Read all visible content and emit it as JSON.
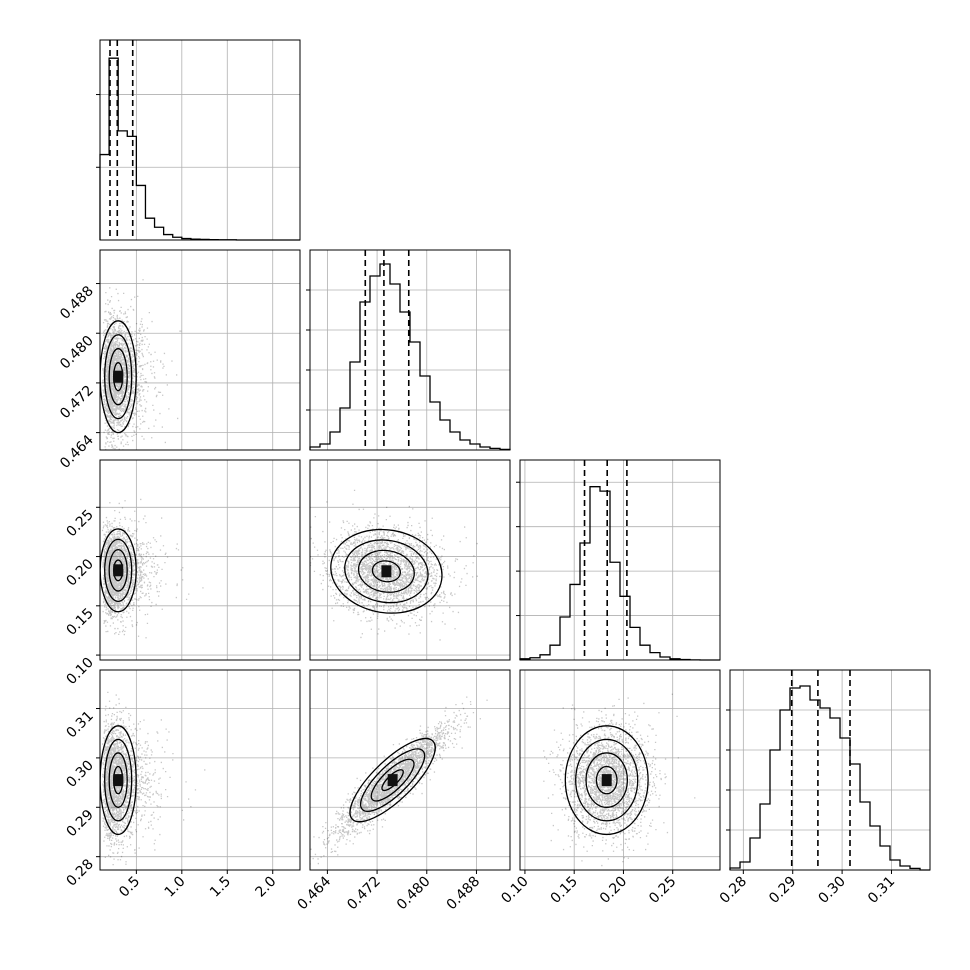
{
  "chart_data": {
    "type": "corner",
    "grid": true,
    "n_params": 4,
    "axes": [
      {
        "xlim": [
          0.1,
          2.3
        ],
        "xticks": [
          0.5,
          1.0,
          1.5,
          2.0
        ],
        "xticklabels": [
          "0.5",
          "1.0",
          "1.5",
          "2.0"
        ]
      },
      {
        "ylim": [
          0.4612,
          0.4934
        ],
        "yticks": [
          0.464,
          0.472,
          0.48,
          0.488
        ],
        "yticklabels": [
          "0.464",
          "0.472",
          "0.480",
          "0.488"
        ],
        "xlim": [
          0.4612,
          0.4934
        ],
        "xticks": [
          0.464,
          0.472,
          0.48,
          0.488
        ],
        "xticklabels": [
          "0.464",
          "0.472",
          "0.480",
          "0.488"
        ]
      },
      {
        "ylim": [
          0.095,
          0.298
        ],
        "yticks": [
          0.1,
          0.15,
          0.2,
          0.25
        ],
        "yticklabels": [
          "0.10",
          "0.15",
          "0.20",
          "0.25"
        ],
        "xlim": [
          0.095,
          0.298
        ],
        "xticks": [
          0.1,
          0.15,
          0.2,
          0.25
        ],
        "xticklabels": [
          "0.10",
          "0.15",
          "0.20",
          "0.25"
        ]
      },
      {
        "ylim": [
          0.2773,
          0.3178
        ],
        "yticks": [
          0.28,
          0.29,
          0.3,
          0.31
        ],
        "yticklabels": [
          "0.28",
          "0.29",
          "0.30",
          "0.31"
        ],
        "xlim": [
          0.2773,
          0.3178
        ],
        "xticks": [
          0.28,
          0.29,
          0.3,
          0.31
        ],
        "xticklabels": [
          "0.28",
          "0.29",
          "0.30",
          "0.31"
        ]
      }
    ],
    "marginals": [
      {
        "param": 0,
        "quantiles": [
          0.21,
          0.29,
          0.46
        ],
        "bin_edges": [
          0.1,
          0.2,
          0.3,
          0.4,
          0.5,
          0.6,
          0.7,
          0.8,
          0.9,
          1.0,
          1.1,
          1.2,
          1.3,
          1.4,
          1.5,
          1.6,
          1.7,
          1.8,
          1.9,
          2.0,
          2.1,
          2.2,
          2.3
        ],
        "counts": [
          470,
          1000,
          600,
          570,
          300,
          120,
          70,
          30,
          15,
          8,
          5,
          3,
          2,
          1,
          1,
          0,
          0,
          0,
          0,
          0,
          0,
          0
        ],
        "ymax": 1100,
        "yticks": [
          400,
          800
        ]
      },
      {
        "param": 1,
        "quantiles": [
          0.4701,
          0.4731,
          0.4771
        ],
        "bin_edges": [
          0.4612,
          0.46281,
          0.46442,
          0.46603,
          0.46764,
          0.46925,
          0.47086,
          0.47247,
          0.47408,
          0.47569,
          0.4773,
          0.47891,
          0.48052,
          0.48213,
          0.48374,
          0.48535,
          0.48696,
          0.48857,
          0.49018,
          0.49179,
          0.4934
        ],
        "counts": [
          15,
          30,
          90,
          210,
          440,
          740,
          870,
          930,
          830,
          690,
          540,
          370,
          240,
          150,
          90,
          50,
          30,
          15,
          8,
          3
        ],
        "ymax": 1000,
        "yticks": [
          200,
          400,
          600,
          800
        ]
      },
      {
        "param": 2,
        "quantiles": [
          0.1605,
          0.1835,
          0.2035
        ],
        "bin_edges": [
          0.095,
          0.10515,
          0.1153,
          0.12545,
          0.1356,
          0.14575,
          0.1559,
          0.16605,
          0.1762,
          0.18635,
          0.1965,
          0.20665,
          0.2168,
          0.22695,
          0.2371,
          0.24725,
          0.2574,
          0.26755,
          0.2777,
          0.28785,
          0.298
        ],
        "counts": [
          8,
          15,
          35,
          100,
          290,
          510,
          790,
          1170,
          1140,
          660,
          430,
          220,
          100,
          50,
          20,
          8,
          3,
          1,
          0,
          0
        ],
        "ymax": 1350,
        "yticks": [
          300,
          600,
          900,
          1200
        ]
      },
      {
        "param": 3,
        "quantiles": [
          0.2898,
          0.2951,
          0.3016
        ],
        "bin_edges": [
          0.2773,
          0.27933,
          0.28135,
          0.28338,
          0.2854,
          0.28743,
          0.28945,
          0.29148,
          0.2935,
          0.29553,
          0.29755,
          0.29958,
          0.3016,
          0.30363,
          0.30565,
          0.30768,
          0.3097,
          0.31173,
          0.31375,
          0.31578,
          0.3178
        ],
        "counts": [
          10,
          40,
          160,
          330,
          600,
          800,
          910,
          920,
          850,
          810,
          760,
          660,
          530,
          340,
          220,
          120,
          50,
          20,
          8,
          0
        ],
        "ymax": 1000,
        "yticks": [
          200,
          400,
          600,
          800
        ]
      }
    ],
    "pairs": [
      {
        "x_param": 0,
        "y_param": 1,
        "mean": [
          0.3,
          0.473
        ],
        "sd": [
          0.13,
          0.0045
        ],
        "corr": 0.0,
        "skew_x": true
      },
      {
        "x_param": 0,
        "y_param": 2,
        "mean": [
          0.3,
          0.186
        ],
        "sd": [
          0.13,
          0.021
        ],
        "corr": 0.0,
        "skew_x": true
      },
      {
        "x_param": 1,
        "y_param": 2,
        "mean": [
          0.4735,
          0.185
        ],
        "sd": [
          0.0045,
          0.021
        ],
        "corr": -0.1,
        "skew_x": false
      },
      {
        "x_param": 0,
        "y_param": 3,
        "mean": [
          0.3,
          0.2955
        ],
        "sd": [
          0.13,
          0.0055
        ],
        "corr": 0.0,
        "skew_x": true
      },
      {
        "x_param": 1,
        "y_param": 3,
        "mean": [
          0.4745,
          0.2955
        ],
        "sd": [
          0.0045,
          0.0055
        ],
        "corr": 0.92,
        "skew_x": false
      },
      {
        "x_param": 2,
        "y_param": 3,
        "mean": [
          0.183,
          0.2955
        ],
        "sd": [
          0.021,
          0.0055
        ],
        "corr": 0.0,
        "skew_x": false
      }
    ],
    "contour_levels": [
      0.5,
      1.0,
      1.5,
      2.0
    ]
  }
}
